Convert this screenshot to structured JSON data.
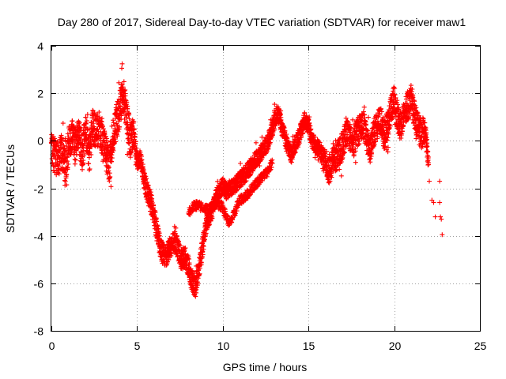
{
  "chart_data": {
    "type": "scatter",
    "title": "Day 280 of 2017, Sidereal Day-to-day VTEC variation (SDTVAR) for receiver maw1",
    "xlabel": "GPS time / hours",
    "ylabel": "SDTVAR / TECUs",
    "xlim": [
      0,
      25
    ],
    "ylim": [
      -8,
      4
    ],
    "xticks": [
      0,
      5,
      10,
      15,
      20,
      25
    ],
    "yticks": [
      -8,
      -6,
      -4,
      -2,
      0,
      2,
      4
    ],
    "xtick_labels": [
      "0",
      "5",
      "10",
      "15",
      "20",
      "25"
    ],
    "ytick_labels": [
      "-8",
      "-6",
      "-4",
      "-2",
      "0",
      "2",
      "4"
    ],
    "grid": true,
    "legend": "none",
    "marker": "+",
    "color": "#ff0000",
    "series": [
      {
        "name": "SDTVAR",
        "trend": [
          [
            0.0,
            -0.3
          ],
          [
            0.2,
            -0.6
          ],
          [
            0.4,
            -0.8
          ],
          [
            0.6,
            -0.4
          ],
          [
            0.8,
            -1.2
          ],
          [
            1.0,
            -0.2
          ],
          [
            1.2,
            0.3
          ],
          [
            1.4,
            -0.3
          ],
          [
            1.6,
            0.4
          ],
          [
            1.8,
            -0.5
          ],
          [
            2.0,
            0.6
          ],
          [
            2.2,
            -0.6
          ],
          [
            2.4,
            0.7
          ],
          [
            2.6,
            0.3
          ],
          [
            2.8,
            0.6
          ],
          [
            3.0,
            -0.1
          ],
          [
            3.2,
            -0.6
          ],
          [
            3.4,
            -1.0
          ],
          [
            3.6,
            0.3
          ],
          [
            3.8,
            0.8
          ],
          [
            4.0,
            1.4
          ],
          [
            4.2,
            2.0
          ],
          [
            4.4,
            1.0
          ],
          [
            4.6,
            0.0
          ],
          [
            4.8,
            0.4
          ],
          [
            5.0,
            -0.9
          ],
          [
            5.2,
            -0.7
          ],
          [
            5.4,
            -1.6
          ],
          [
            5.6,
            -2.2
          ],
          [
            5.8,
            -2.6
          ],
          [
            6.0,
            -3.2
          ],
          [
            6.2,
            -4.0
          ],
          [
            6.4,
            -4.6
          ],
          [
            6.6,
            -4.9
          ],
          [
            6.8,
            -4.7
          ],
          [
            7.0,
            -4.4
          ],
          [
            7.2,
            -4.2
          ],
          [
            7.4,
            -4.6
          ],
          [
            7.6,
            -5.0
          ],
          [
            7.8,
            -4.9
          ],
          [
            8.0,
            -5.3
          ],
          [
            8.2,
            -5.9
          ],
          [
            8.4,
            -6.2
          ],
          [
            8.6,
            -5.4
          ],
          [
            8.8,
            -4.6
          ],
          [
            9.0,
            -3.6
          ],
          [
            9.2,
            -3.2
          ],
          [
            9.4,
            -2.9
          ],
          [
            9.6,
            -2.4
          ],
          [
            9.8,
            -2.1
          ],
          [
            10.0,
            -1.9
          ],
          [
            10.2,
            -2.1
          ],
          [
            10.4,
            -2.0
          ],
          [
            10.6,
            -1.9
          ],
          [
            10.8,
            -1.8
          ],
          [
            11.0,
            -1.6
          ],
          [
            11.2,
            -1.5
          ],
          [
            11.4,
            -1.3
          ],
          [
            11.6,
            -1.1
          ],
          [
            11.8,
            -0.9
          ],
          [
            12.0,
            -0.7
          ],
          [
            12.2,
            -0.5
          ],
          [
            12.4,
            -0.3
          ],
          [
            12.6,
            -0.1
          ],
          [
            12.8,
            0.3
          ],
          [
            13.0,
            0.8
          ],
          [
            13.2,
            1.2
          ],
          [
            13.4,
            0.7
          ],
          [
            13.6,
            0.2
          ],
          [
            13.8,
            -0.3
          ],
          [
            14.0,
            -0.6
          ],
          [
            14.2,
            -0.2
          ],
          [
            14.4,
            0.1
          ],
          [
            14.6,
            0.5
          ],
          [
            14.8,
            0.9
          ],
          [
            15.0,
            0.6
          ],
          [
            15.2,
            0.0
          ],
          [
            15.4,
            -0.2
          ],
          [
            15.6,
            -0.3
          ],
          [
            15.8,
            -0.6
          ],
          [
            16.0,
            -0.9
          ],
          [
            16.2,
            -1.2
          ],
          [
            16.4,
            -0.9
          ],
          [
            16.6,
            -0.7
          ],
          [
            16.8,
            -0.5
          ],
          [
            17.0,
            -0.2
          ],
          [
            17.2,
            0.4
          ],
          [
            17.4,
            0.2
          ],
          [
            17.6,
            -0.2
          ],
          [
            17.8,
            0.3
          ],
          [
            18.0,
            0.5
          ],
          [
            18.2,
            0.7
          ],
          [
            18.4,
            0.1
          ],
          [
            18.6,
            -0.3
          ],
          [
            18.8,
            0.3
          ],
          [
            19.0,
            0.6
          ],
          [
            19.2,
            0.9
          ],
          [
            19.4,
            0.2
          ],
          [
            19.6,
            0.6
          ],
          [
            19.8,
            1.3
          ],
          [
            20.0,
            1.8
          ],
          [
            20.2,
            1.0
          ],
          [
            20.4,
            0.5
          ],
          [
            20.6,
            1.3
          ],
          [
            20.8,
            1.5
          ],
          [
            21.0,
            1.8
          ],
          [
            21.2,
            1.0
          ],
          [
            21.4,
            0.6
          ],
          [
            21.6,
            0.3
          ],
          [
            21.8,
            0.5
          ],
          [
            22.0,
            -1.0
          ]
        ],
        "secondary_track": [
          [
            8.0,
            -3.0
          ],
          [
            8.4,
            -2.7
          ],
          [
            8.8,
            -2.8
          ],
          [
            9.2,
            -2.9
          ],
          [
            9.6,
            -2.6
          ],
          [
            10.0,
            -2.8
          ],
          [
            10.2,
            -3.2
          ],
          [
            10.4,
            -3.5
          ],
          [
            10.6,
            -3.2
          ],
          [
            10.8,
            -2.8
          ],
          [
            11.0,
            -2.5
          ],
          [
            11.4,
            -2.3
          ],
          [
            11.8,
            -1.9
          ],
          [
            12.2,
            -1.6
          ],
          [
            12.6,
            -1.3
          ],
          [
            12.9,
            -0.9
          ]
        ],
        "isolated_points": [
          [
            22.0,
            -1.0
          ],
          [
            22.05,
            -1.7
          ],
          [
            22.2,
            -2.5
          ],
          [
            22.3,
            -2.6
          ],
          [
            22.4,
            -3.2
          ],
          [
            22.65,
            -1.7
          ],
          [
            22.65,
            -2.6
          ],
          [
            22.7,
            -3.2
          ],
          [
            22.75,
            -3.3
          ],
          [
            22.8,
            -3.95
          ]
        ]
      }
    ]
  }
}
